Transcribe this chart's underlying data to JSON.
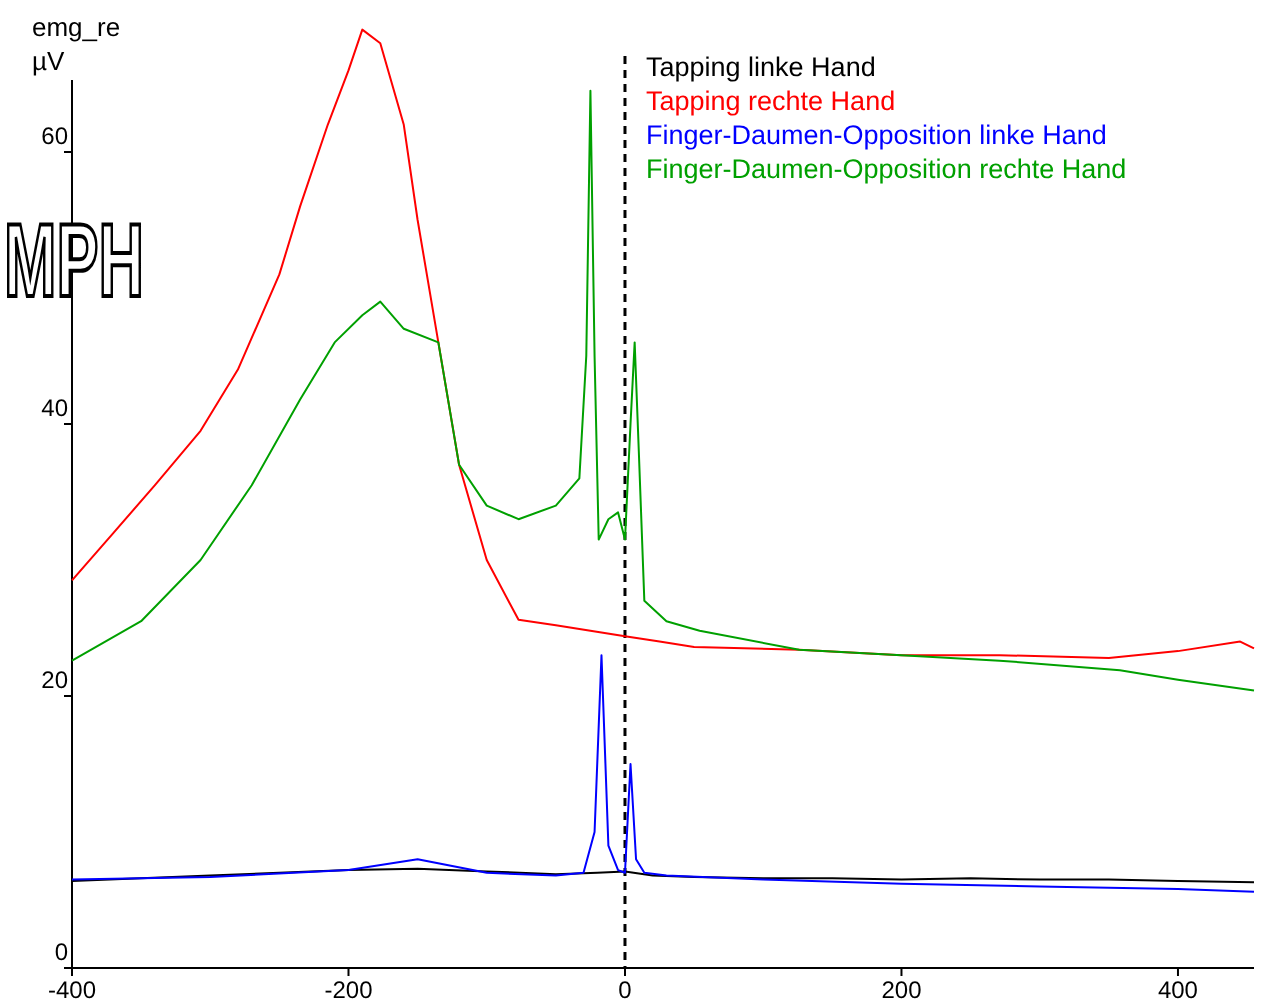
{
  "chart_data": {
    "type": "line",
    "ylabel": "emg_re\nµV",
    "xlim": [
      -400,
      455
    ],
    "ylim": [
      0,
      70
    ],
    "xticks": [
      -400,
      -200,
      0,
      200,
      400
    ],
    "yticks": [
      0,
      20,
      40,
      60
    ],
    "grid": false,
    "legend": "top",
    "marker": "none",
    "line_style": "solid",
    "annotations": [
      "MPH"
    ],
    "ref_lines": [
      {
        "axis": "x",
        "value": 0,
        "color": "#000000",
        "line_style": "dashed"
      }
    ],
    "series": [
      {
        "name": "Tapping linke Hand",
        "color": "#000000",
        "x": [
          -400,
          -350,
          -300,
          -250,
          -200,
          -150,
          -100,
          -50,
          -20,
          0,
          20,
          50,
          100,
          150,
          200,
          250,
          300,
          350,
          400,
          455
        ],
        "values": [
          6.4,
          6.6,
          6.8,
          7.0,
          7.2,
          7.3,
          7.1,
          6.9,
          7.0,
          7.1,
          6.8,
          6.7,
          6.6,
          6.6,
          6.5,
          6.6,
          6.5,
          6.5,
          6.4,
          6.3
        ]
      },
      {
        "name": "Tapping rechte Hand",
        "color": "#ff0000",
        "x": [
          -400,
          -370,
          -340,
          -307,
          -280,
          -250,
          -235,
          -215,
          -200,
          -190,
          -177,
          -160,
          -150,
          -135,
          -120,
          -100,
          -77,
          -50,
          -25,
          0,
          25,
          50,
          126,
          200,
          271,
          350,
          400,
          445,
          455
        ],
        "values": [
          28.5,
          32,
          35.5,
          39.5,
          44,
          51,
          56,
          62,
          66,
          69,
          68,
          62,
          55,
          46,
          37,
          30,
          25.6,
          25.2,
          24.8,
          24.4,
          24,
          23.6,
          23.4,
          23,
          23,
          22.8,
          23.3,
          24,
          23.5
        ]
      },
      {
        "name": "Finger-Daumen-Opposition linke Hand",
        "color": "#0000ff",
        "x": [
          -400,
          -300,
          -200,
          -150,
          -100,
          -50,
          -30,
          -22,
          -17,
          -12,
          -5,
          0,
          4,
          8,
          14,
          30,
          100,
          200,
          300,
          400,
          455
        ],
        "values": [
          6.5,
          6.7,
          7.2,
          8.0,
          7.0,
          6.8,
          7.0,
          10,
          23,
          9,
          7.2,
          7.0,
          15,
          8,
          7.0,
          6.8,
          6.5,
          6.2,
          6.0,
          5.8,
          5.6
        ]
      },
      {
        "name": "Finger-Daumen-Opposition rechte Hand",
        "color": "#00a000",
        "x": [
          -400,
          -350,
          -307,
          -270,
          -235,
          -210,
          -190,
          -177,
          -160,
          -135,
          -120,
          -100,
          -77,
          -50,
          -33,
          -28,
          -25,
          -22,
          -19,
          -12,
          -5,
          0,
          4,
          7,
          10,
          14,
          30,
          54,
          126,
          200,
          271,
          358,
          400,
          455
        ],
        "values": [
          22.6,
          25.5,
          30,
          35.5,
          41.8,
          46,
          48,
          49,
          47,
          46,
          37,
          34,
          33,
          34,
          36,
          45,
          64.5,
          45,
          31.5,
          33,
          33.5,
          31.5,
          40,
          46,
          38,
          27,
          25.5,
          24.8,
          23.4,
          23,
          22.6,
          21.9,
          21.2,
          20.4
        ]
      }
    ]
  }
}
